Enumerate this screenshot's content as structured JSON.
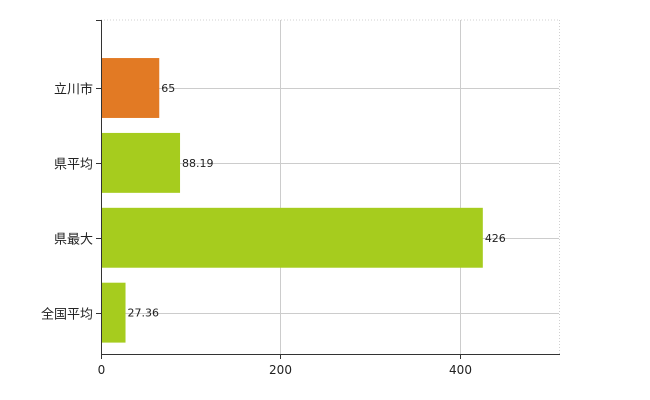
{
  "chart_data": {
    "type": "bar",
    "orientation": "horizontal",
    "categories": [
      "立川市",
      "県平均",
      "県最大",
      "全国平均"
    ],
    "values": [
      65,
      88.19,
      426,
      27.36
    ],
    "value_labels": [
      "65",
      "88.19",
      "426",
      "27.36"
    ],
    "bar_colors": [
      "#e27a24",
      "#a6cc1e",
      "#a6cc1e",
      "#a6cc1e"
    ],
    "xlim": [
      0,
      511
    ],
    "x_ticks": [
      0,
      200,
      400
    ],
    "x_tick_labels": [
      "0",
      "200",
      "400"
    ],
    "grid": true,
    "legend": "none",
    "title": "",
    "xlabel": "",
    "ylabel": ""
  }
}
